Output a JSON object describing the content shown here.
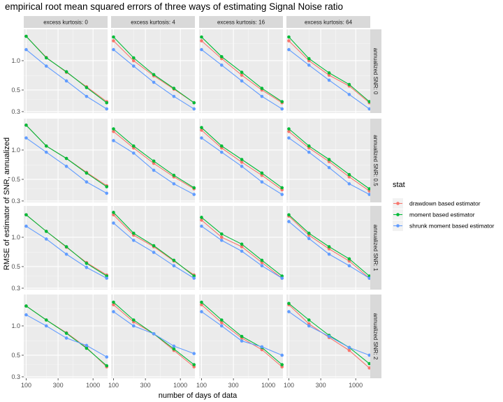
{
  "chart_data": {
    "type": "line",
    "title": "empirical root mean squared errors of three ways of estimating Signal Noise ratio",
    "xlabel": "number of days of data",
    "ylabel": "RMSE of estimator of SNR, annualized",
    "x_scale": "log",
    "y_scale": "log",
    "xlim": [
      92,
      1650
    ],
    "ylim": [
      0.29,
      2.1
    ],
    "x_ticks": [
      100,
      300,
      1000
    ],
    "x_tick_labels": [
      "100",
      "300",
      "1000"
    ],
    "y_ticks": [
      0.3,
      0.5,
      1.0
    ],
    "y_tick_labels": [
      "0.3",
      "0.5",
      "1.0"
    ],
    "grid": true,
    "x": [
      100,
      200,
      400,
      800,
      1600
    ],
    "column_facet_labels": [
      "excess kurtosis: 0",
      "excess kurtosis: 4",
      "excess kurtosis: 16",
      "excess kurtosis: 64"
    ],
    "row_facet_labels": [
      "annualized SNR: 0",
      "annualized SNR: 0.5",
      "annualized SNR: 1",
      "annualized SNR: 2"
    ],
    "legend_title": "stat",
    "legend_position": "right",
    "series_names": [
      "drawdown based estimator",
      "moment based estimator",
      "shrunk moment based estimator"
    ],
    "series_colors": [
      "#F8766D",
      "#00BA38",
      "#619CFF"
    ],
    "panels": [
      [
        {
          "values": [
            [
              1.78,
              1.08,
              0.76,
              0.54,
              0.38
            ],
            [
              1.78,
              1.07,
              0.77,
              0.53,
              0.37
            ],
            [
              1.3,
              0.88,
              0.62,
              0.43,
              0.32
            ]
          ]
        },
        {
          "values": [
            [
              1.6,
              1.0,
              0.7,
              0.51,
              0.37
            ],
            [
              1.75,
              1.07,
              0.72,
              0.52,
              0.37
            ],
            [
              1.3,
              0.88,
              0.6,
              0.43,
              0.32
            ]
          ]
        },
        {
          "values": [
            [
              1.6,
              1.05,
              0.71,
              0.5,
              0.37
            ],
            [
              1.75,
              1.1,
              0.76,
              0.52,
              0.38
            ],
            [
              1.3,
              0.9,
              0.62,
              0.43,
              0.32
            ]
          ]
        },
        {
          "values": [
            [
              1.6,
              1.0,
              0.71,
              0.55,
              0.37
            ],
            [
              1.75,
              1.05,
              0.75,
              0.57,
              0.38
            ],
            [
              1.3,
              0.9,
              0.63,
              0.45,
              0.32
            ]
          ]
        }
      ],
      [
        {
          "values": [
            [
              1.8,
              1.1,
              0.82,
              0.59,
              0.43
            ],
            [
              1.8,
              1.1,
              0.82,
              0.58,
              0.42
            ],
            [
              1.33,
              0.95,
              0.68,
              0.47,
              0.36
            ]
          ]
        },
        {
          "values": [
            [
              1.55,
              1.05,
              0.73,
              0.53,
              0.4
            ],
            [
              1.65,
              1.1,
              0.77,
              0.55,
              0.41
            ],
            [
              1.25,
              0.93,
              0.62,
              0.45,
              0.35
            ]
          ]
        },
        {
          "values": [
            [
              1.6,
              1.05,
              0.75,
              0.55,
              0.39
            ],
            [
              1.7,
              1.1,
              0.8,
              0.58,
              0.41
            ],
            [
              1.33,
              0.95,
              0.68,
              0.47,
              0.35
            ]
          ]
        },
        {
          "values": [
            [
              1.55,
              1.05,
              0.76,
              0.53,
              0.38
            ],
            [
              1.65,
              1.1,
              0.8,
              0.56,
              0.4
            ],
            [
              1.33,
              0.95,
              0.66,
              0.45,
              0.35
            ]
          ]
        }
      ],
      [
        {
          "values": [
            [
              1.7,
              1.15,
              0.79,
              0.55,
              0.41
            ],
            [
              1.7,
              1.15,
              0.8,
              0.54,
              0.4
            ],
            [
              1.3,
              0.96,
              0.67,
              0.49,
              0.38
            ]
          ]
        },
        {
          "values": [
            [
              1.7,
              1.05,
              0.8,
              0.57,
              0.41
            ],
            [
              1.8,
              1.1,
              0.82,
              0.58,
              0.4
            ],
            [
              1.4,
              0.93,
              0.7,
              0.51,
              0.38
            ]
          ]
        },
        {
          "values": [
            [
              1.5,
              1.0,
              0.8,
              0.55,
              0.38
            ],
            [
              1.6,
              1.08,
              0.85,
              0.58,
              0.4
            ],
            [
              1.3,
              0.93,
              0.72,
              0.51,
              0.38
            ]
          ]
        },
        {
          "values": [
            [
              1.65,
              1.05,
              0.76,
              0.57,
              0.38
            ],
            [
              1.7,
              1.1,
              0.8,
              0.6,
              0.4
            ],
            [
              1.45,
              0.97,
              0.67,
              0.51,
              0.38
            ]
          ]
        }
      ],
      [
        {
          "values": [
            [
              1.6,
              1.15,
              0.85,
              0.6,
              0.38
            ],
            [
              1.6,
              1.15,
              0.84,
              0.59,
              0.39
            ],
            [
              1.3,
              1.0,
              0.75,
              0.63,
              0.48
            ]
          ]
        },
        {
          "values": [
            [
              1.65,
              1.1,
              0.83,
              0.56,
              0.38
            ],
            [
              1.75,
              1.15,
              0.83,
              0.58,
              0.4
            ],
            [
              1.4,
              1.0,
              0.83,
              0.62,
              0.52
            ]
          ]
        },
        {
          "values": [
            [
              1.65,
              1.08,
              0.75,
              0.57,
              0.38
            ],
            [
              1.75,
              1.15,
              0.78,
              0.6,
              0.4
            ],
            [
              1.4,
              1.0,
              0.7,
              0.61,
              0.5
            ]
          ]
        },
        {
          "values": [
            [
              1.65,
              1.05,
              0.76,
              0.56,
              0.37
            ],
            [
              1.7,
              1.15,
              0.8,
              0.6,
              0.41
            ],
            [
              1.4,
              1.0,
              0.78,
              0.6,
              0.5
            ]
          ]
        }
      ]
    ]
  }
}
